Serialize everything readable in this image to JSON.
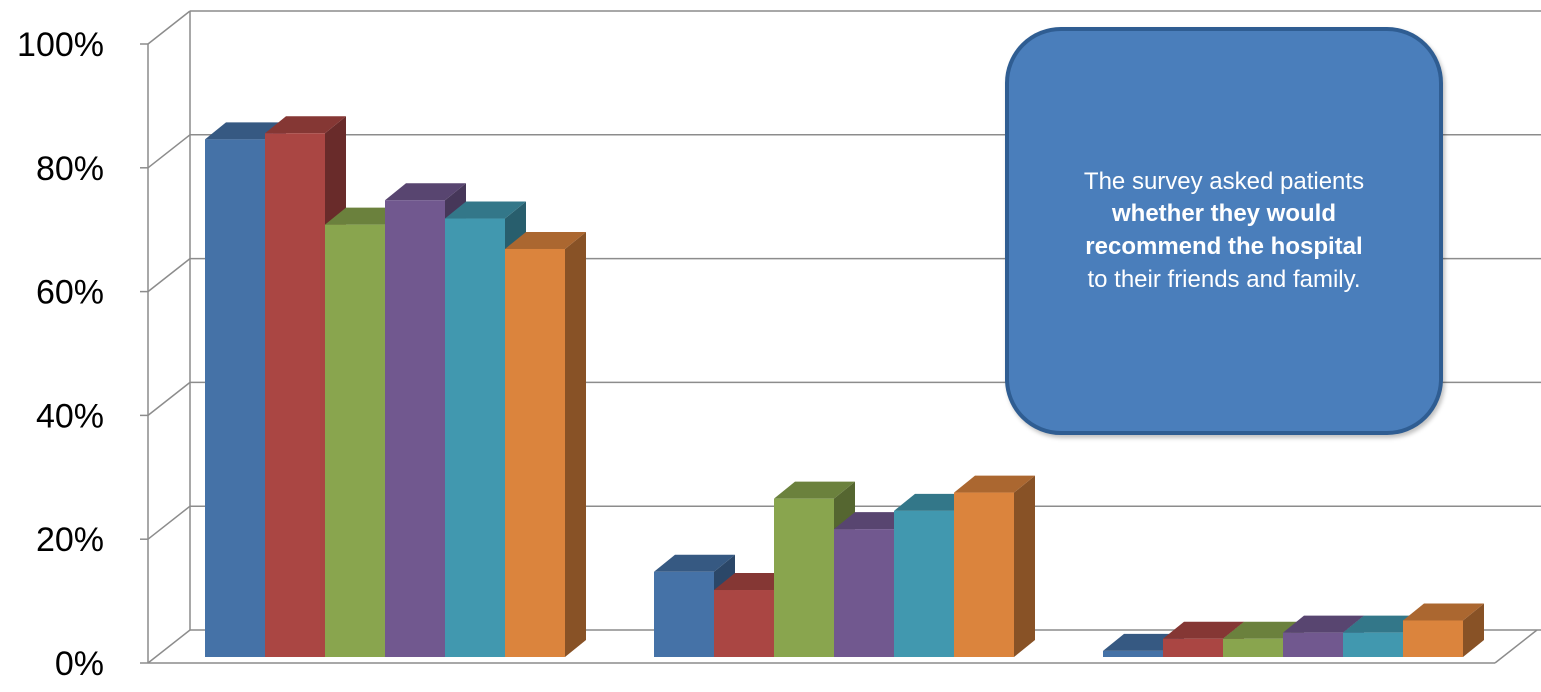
{
  "chart_data": {
    "type": "bar",
    "title": "",
    "xlabel": "",
    "ylabel": "",
    "ylim": [
      0,
      100
    ],
    "y_ticks": [
      "0%",
      "20%",
      "40%",
      "60%",
      "80%",
      "100%"
    ],
    "grid": true,
    "categories": [
      "",
      "",
      ""
    ],
    "series": [
      {
        "color": "#4572a7",
        "values": [
          85,
          14,
          1
        ]
      },
      {
        "color": "#aa4643",
        "values": [
          86,
          11,
          3
        ]
      },
      {
        "color": "#89a54e",
        "values": [
          71,
          26,
          3
        ]
      },
      {
        "color": "#71588f",
        "values": [
          75,
          21,
          4
        ]
      },
      {
        "color": "#4198af",
        "values": [
          72,
          24,
          4
        ]
      },
      {
        "color": "#db843d",
        "values": [
          67,
          27,
          6
        ]
      }
    ]
  },
  "callout": {
    "line1": "The survey asked patients",
    "bold": "whether they would recommend the hospital",
    "line3": "to their friends and family."
  }
}
